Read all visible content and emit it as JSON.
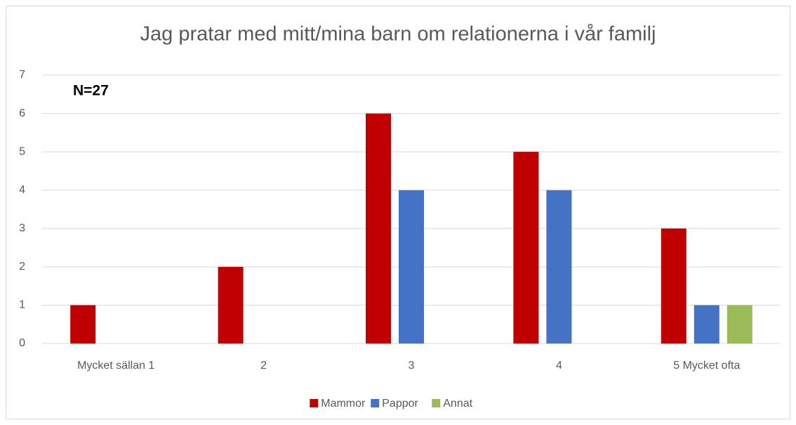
{
  "chart_data": {
    "type": "bar",
    "title": "Jag pratar med mitt/mina barn om relationerna i vår familj",
    "annotation": "N=27",
    "categories": [
      "Mycket sällan 1",
      "2",
      "3",
      "4",
      "5 Mycket ofta"
    ],
    "series": [
      {
        "name": "Mammor",
        "color": "#c00000",
        "values": [
          1,
          2,
          6,
          5,
          3
        ]
      },
      {
        "name": "Pappor",
        "color": "#4472c4",
        "values": [
          0,
          0,
          4,
          4,
          1
        ]
      },
      {
        "name": "Annat",
        "color": "#9bbb59",
        "values": [
          0,
          0,
          0,
          0,
          1
        ]
      }
    ],
    "ylim": [
      0,
      7
    ],
    "yticks": [
      0,
      1,
      2,
      3,
      4,
      5,
      6,
      7
    ],
    "grid": true,
    "legend": "bottom"
  }
}
